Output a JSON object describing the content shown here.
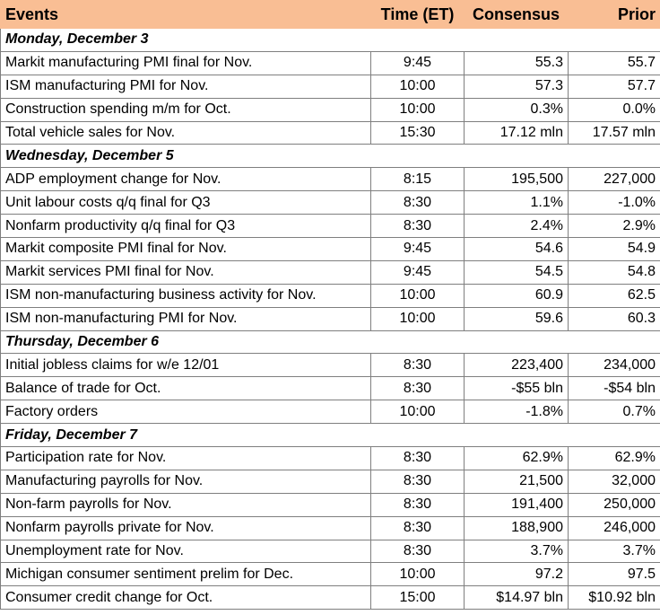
{
  "headers": {
    "events": "Events",
    "time": "Time (ET)",
    "consensus": "Consensus",
    "prior": "Prior"
  },
  "days": [
    {
      "label": "Monday, December 3",
      "rows": [
        {
          "event": "Markit manufacturing PMI final for Nov.",
          "time": "9:45",
          "consensus": "55.3",
          "prior": "55.7"
        },
        {
          "event": "ISM manufacturing PMI for Nov.",
          "time": "10:00",
          "consensus": "57.3",
          "prior": "57.7"
        },
        {
          "event": "Construction spending m/m for Oct.",
          "time": "10:00",
          "consensus": "0.3%",
          "prior": "0.0%"
        },
        {
          "event": "Total vehicle sales for Nov.",
          "time": "15:30",
          "consensus": "17.12 mln",
          "prior": "17.57 mln"
        }
      ]
    },
    {
      "label": "Wednesday, December 5",
      "rows": [
        {
          "event": "ADP employment change for Nov.",
          "time": "8:15",
          "consensus": "195,500",
          "prior": "227,000"
        },
        {
          "event": "Unit labour costs q/q final for Q3",
          "time": "8:30",
          "consensus": "1.1%",
          "prior": "-1.0%"
        },
        {
          "event": "Nonfarm productivity q/q final for Q3",
          "time": "8:30",
          "consensus": "2.4%",
          "prior": "2.9%"
        },
        {
          "event": "Markit composite PMI final for Nov.",
          "time": "9:45",
          "consensus": "54.6",
          "prior": "54.9"
        },
        {
          "event": "Markit services PMI final for Nov.",
          "time": "9:45",
          "consensus": "54.5",
          "prior": "54.8"
        },
        {
          "event": "ISM non-manufacturing business activity for Nov.",
          "time": "10:00",
          "consensus": "60.9",
          "prior": "62.5"
        },
        {
          "event": "ISM non-manufacturing PMI for Nov.",
          "time": "10:00",
          "consensus": "59.6",
          "prior": "60.3"
        }
      ]
    },
    {
      "label": "Thursday, December 6",
      "rows": [
        {
          "event": "Initial jobless claims for w/e 12/01",
          "time": "8:30",
          "consensus": "223,400",
          "prior": "234,000"
        },
        {
          "event": "Balance of trade for Oct.",
          "time": "8:30",
          "consensus": "-$55 bln",
          "prior": "-$54 bln"
        },
        {
          "event": "Factory orders",
          "time": "10:00",
          "consensus": "-1.8%",
          "prior": "0.7%"
        }
      ]
    },
    {
      "label": "Friday, December 7",
      "rows": [
        {
          "event": "Participation rate for Nov.",
          "time": "8:30",
          "consensus": "62.9%",
          "prior": "62.9%"
        },
        {
          "event": "Manufacturing payrolls for Nov.",
          "time": "8:30",
          "consensus": "21,500",
          "prior": "32,000"
        },
        {
          "event": "Non-farm payrolls for Nov.",
          "time": "8:30",
          "consensus": "191,400",
          "prior": "250,000"
        },
        {
          "event": "Nonfarm payrolls private for Nov.",
          "time": "8:30",
          "consensus": "188,900",
          "prior": "246,000"
        },
        {
          "event": "Unemployment rate for Nov.",
          "time": "8:30",
          "consensus": "3.7%",
          "prior": "3.7%"
        },
        {
          "event": "Michigan consumer sentiment prelim for Dec.",
          "time": "10:00",
          "consensus": "97.2",
          "prior": "97.5"
        },
        {
          "event": "Consumer credit change for Oct.",
          "time": "15:00",
          "consensus": "$14.97 bln",
          "prior": "$10.92 bln"
        }
      ]
    }
  ]
}
